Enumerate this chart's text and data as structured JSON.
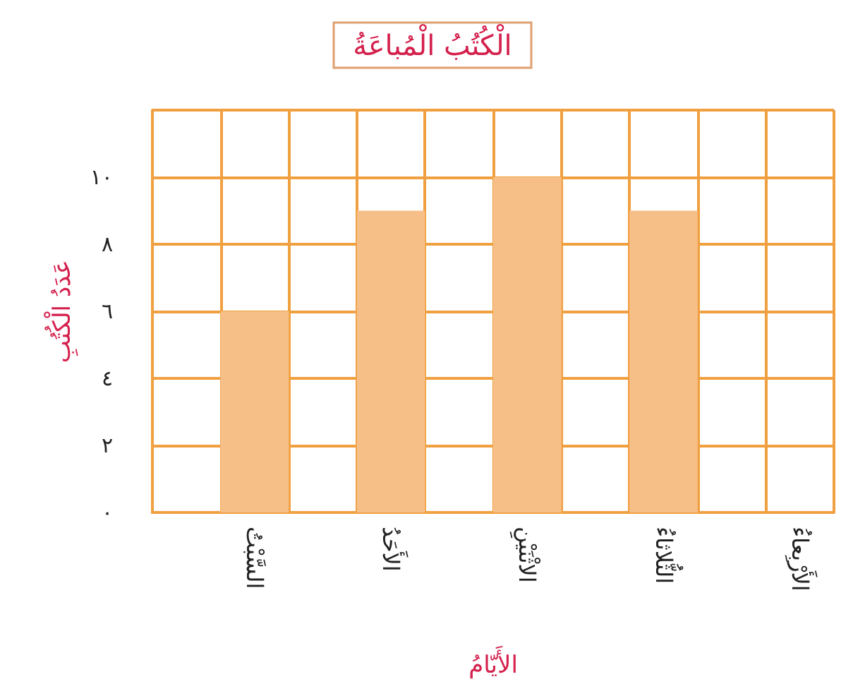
{
  "chart_data": {
    "type": "bar",
    "title": "الْكُتُبُ الْمُباعَةُ",
    "xlabel": "الأَيّامُ",
    "ylabel": "عَدَدُ الْكُتُبِ",
    "categories": [
      null,
      "السَّبْتُ",
      null,
      "الأَحَدُ",
      null,
      "الاثْنَيْنِ",
      null,
      "الثُّلاثاءُ",
      null,
      "الأَرْبِعاءُ"
    ],
    "values": [
      null,
      6,
      null,
      9,
      null,
      10,
      null,
      9,
      null,
      null
    ],
    "color": "#f7bf88",
    "ylim": [
      0,
      12
    ],
    "yticks": [
      {
        "value": 0,
        "label": "٠"
      },
      {
        "value": 2,
        "label": "٢"
      },
      {
        "value": 4,
        "label": "٤"
      },
      {
        "value": 6,
        "label": "٦"
      },
      {
        "value": 8,
        "label": "٨"
      },
      {
        "value": 10,
        "label": "١٠"
      },
      {
        "value": 12,
        "label": null
      }
    ],
    "grid": true
  }
}
